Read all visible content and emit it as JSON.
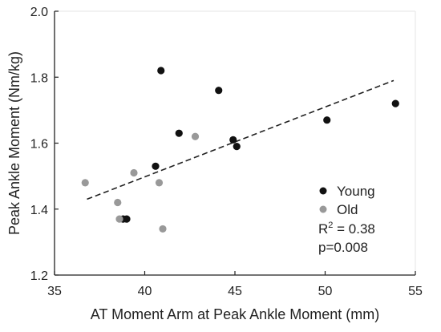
{
  "chart_data": {
    "type": "scatter",
    "xlabel": "AT Moment Arm at Peak Ankle Moment (mm)",
    "ylabel": "Peak Ankle Moment (Nm/kg)",
    "xlim": [
      35,
      55
    ],
    "ylim": [
      1.2,
      2.0
    ],
    "xticks": [
      "35",
      "40",
      "45",
      "50",
      "55"
    ],
    "yticks": [
      "1.2",
      "1.4",
      "1.6",
      "1.8",
      "2.0"
    ],
    "grid": false,
    "legend_position": "lower-right",
    "series": [
      {
        "name": "Young",
        "color": "#111111",
        "points": [
          {
            "x": 40.9,
            "y": 1.82
          },
          {
            "x": 44.1,
            "y": 1.76
          },
          {
            "x": 41.9,
            "y": 1.63
          },
          {
            "x": 44.9,
            "y": 1.61
          },
          {
            "x": 45.1,
            "y": 1.59
          },
          {
            "x": 40.6,
            "y": 1.53
          },
          {
            "x": 50.1,
            "y": 1.67
          },
          {
            "x": 53.9,
            "y": 1.72
          },
          {
            "x": 38.8,
            "y": 1.37
          },
          {
            "x": 39.0,
            "y": 1.37
          }
        ]
      },
      {
        "name": "Old",
        "color": "#999999",
        "points": [
          {
            "x": 36.7,
            "y": 1.48
          },
          {
            "x": 39.4,
            "y": 1.51
          },
          {
            "x": 40.8,
            "y": 1.48
          },
          {
            "x": 42.8,
            "y": 1.62
          },
          {
            "x": 38.5,
            "y": 1.42
          },
          {
            "x": 38.6,
            "y": 1.37
          },
          {
            "x": 41.0,
            "y": 1.34
          }
        ]
      }
    ],
    "trendline": {
      "style": "dashed",
      "color": "#222222",
      "from": {
        "x": 36.8,
        "y": 1.43
      },
      "to": {
        "x": 53.8,
        "y": 1.79
      }
    },
    "annotations": {
      "r2_prefix": "R",
      "r2_superscript": "2",
      "r2_value": " = 0.38",
      "p_value": "p=0.008"
    }
  }
}
